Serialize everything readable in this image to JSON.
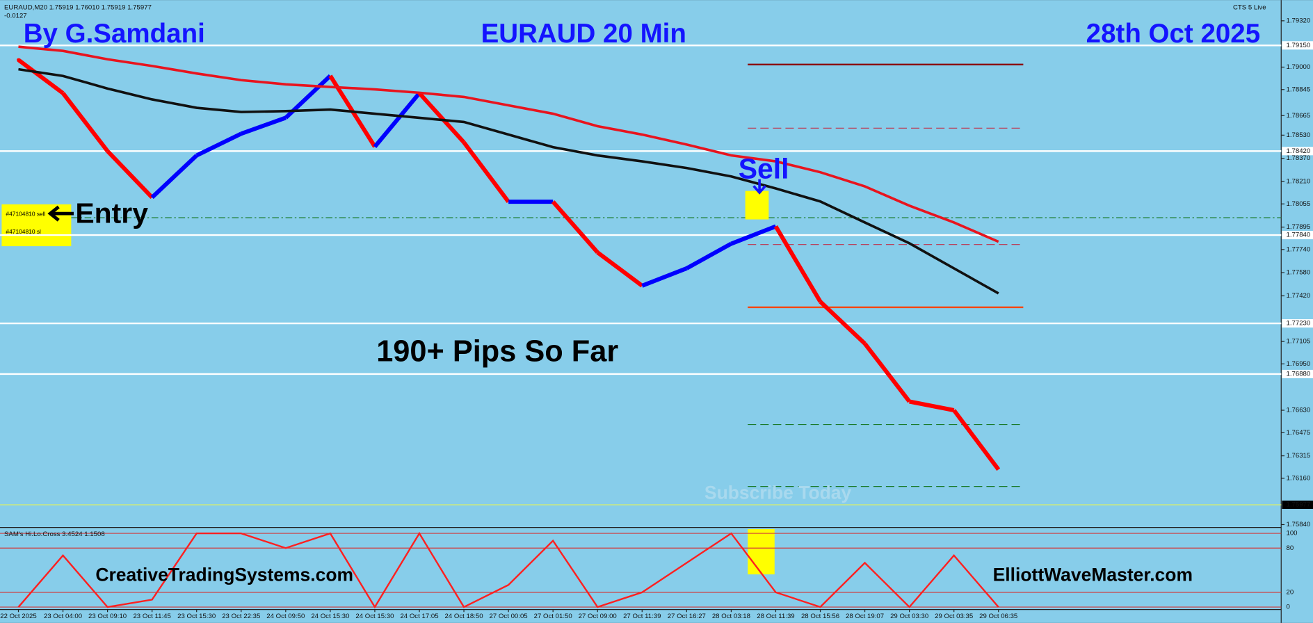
{
  "chart_data": {
    "type": "line",
    "header": "EURAUD,M20  1.75919 1.76010 1.75919 1.75977",
    "change": "-0.0127",
    "badge": "CTS 5 Live",
    "title_left": "By G.Samdani",
    "title": "EURAUD 20 Min",
    "title_right": "28th Oct 2025",
    "annotations": {
      "sell": "Sell",
      "entry": "Entry",
      "pips": "190+ Pips So Far",
      "subscribe": "Subscribe Today",
      "site_left": "CreativeTradingSystems.com",
      "site_right": "ElliottWaveMaster.com",
      "order_sell": "#47104810 sell",
      "order_sl": "#47104810 sl"
    },
    "categories": [
      "22 Oct 2025",
      "23 Oct 04:00",
      "23 Oct 09:10",
      "23 Oct 11:45",
      "23 Oct 15:30",
      "23 Oct 22:35",
      "24 Oct 09:50",
      "24 Oct 15:30",
      "24 Oct 15:30",
      "24 Oct 17:05",
      "24 Oct 18:50",
      "27 Oct 00:05",
      "27 Oct 01:50",
      "27 Oct 09:00",
      "27 Oct 11:39",
      "27 Oct 16:27",
      "28 Oct 03:18",
      "28 Oct 11:39",
      "28 Oct 15:56",
      "28 Oct 19:07",
      "29 Oct 03:30",
      "29 Oct 03:35",
      "29 Oct 06:35"
    ],
    "series": [
      {
        "name": "price",
        "color_up": "#0000ff",
        "color_down": "#ff0000",
        "values": [
          1.7905,
          1.7882,
          1.7842,
          1.781,
          1.7839,
          1.7854,
          1.7865,
          1.7894,
          1.7845,
          1.7882,
          1.7848,
          1.7807,
          1.7807,
          1.7772,
          1.7749,
          1.7761,
          1.7778,
          1.779,
          1.7738,
          1.7709,
          1.7669,
          1.7663,
          1.7622
        ]
      },
      {
        "name": "slow-ma",
        "color": "#e8141e",
        "values": [
          1.79141,
          1.79112,
          1.79054,
          1.79008,
          1.78956,
          1.7891,
          1.78881,
          1.78863,
          1.78846,
          1.78823,
          1.78794,
          1.78736,
          1.78678,
          1.78592,
          1.78534,
          1.78465,
          1.7839,
          1.78349,
          1.78274,
          1.78176,
          1.78043,
          1.77927,
          1.77794
        ]
      },
      {
        "name": "mid-ma",
        "color": "#111111",
        "values": [
          1.78985,
          1.78939,
          1.78852,
          1.78777,
          1.78719,
          1.7869,
          1.78696,
          1.78707,
          1.78678,
          1.7865,
          1.78621,
          1.78534,
          1.78447,
          1.7839,
          1.78349,
          1.78303,
          1.78245,
          1.78162,
          1.78072,
          1.77927,
          1.77783,
          1.7761,
          1.77437
        ]
      }
    ],
    "ylim": [
      1.7582,
      1.7944
    ],
    "yticks": [
      {
        "value": 1.7932,
        "label": "1.79320"
      },
      {
        "value": 1.79,
        "label": "1.79000"
      },
      1.78845,
      1.78665,
      {
        "value": 1.7853,
        "label": "1.78530"
      },
      {
        "value": 1.7837,
        "label": "1.78370"
      },
      {
        "value": 1.7821,
        "label": "1.78210"
      },
      1.78055,
      1.77895,
      {
        "value": 1.7774,
        "label": "1.77740"
      },
      {
        "value": 1.7758,
        "label": "1.77580"
      },
      {
        "value": 1.7742,
        "label": "1.77420"
      },
      1.77105,
      {
        "value": 1.7695,
        "label": "1.76950"
      },
      {
        "value": 1.7663,
        "label": "1.76630"
      },
      1.76475,
      1.76315,
      {
        "value": 1.7616,
        "label": "1.76160"
      },
      {
        "value": 1.7584,
        "label": "1.75840"
      }
    ],
    "levels": [
      {
        "value": 1.7915,
        "label": "1.79150"
      },
      {
        "value": 1.7842,
        "label": "1.78420"
      },
      {
        "value": 1.7784,
        "label": "1.77840"
      },
      {
        "value": 1.7723,
        "label": "1.77230"
      },
      {
        "value": 1.7688,
        "label": "1.76880"
      }
    ],
    "last": 1.75977,
    "oscillator": {
      "name": "SAM's Hi.Lo.Cross 3.4524 1.1508",
      "ylim": [
        0,
        100
      ],
      "yticks": [
        0,
        20,
        80,
        100
      ],
      "values": [
        0,
        70,
        0,
        10,
        100,
        100,
        80,
        100,
        0,
        100,
        0,
        30,
        90,
        0,
        20,
        60,
        100,
        20,
        0,
        60,
        0,
        70,
        0
      ]
    }
  }
}
